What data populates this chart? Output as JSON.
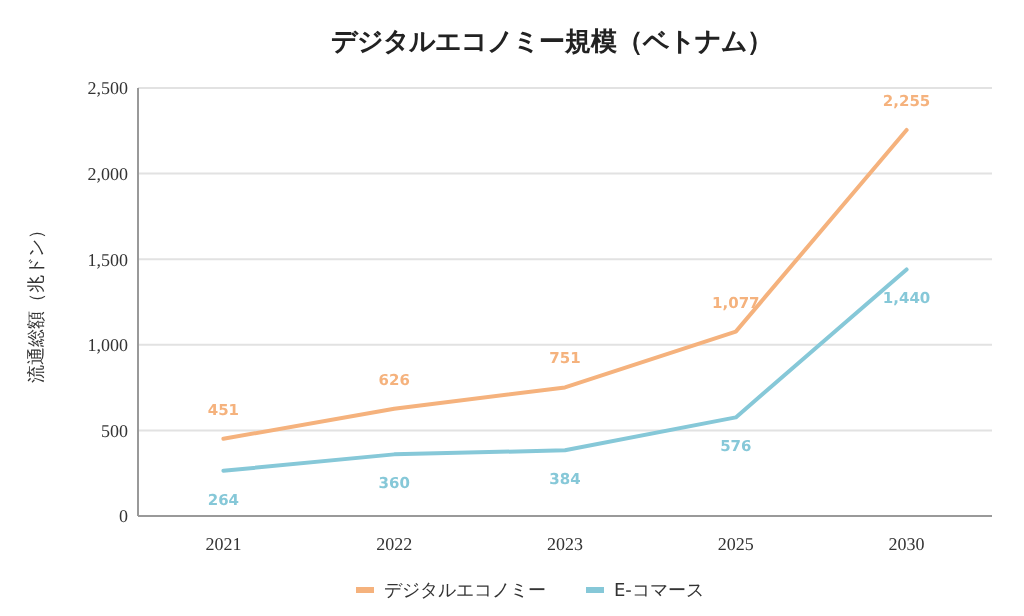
{
  "chart_data": {
    "type": "line",
    "title": "デジタルエコノミー規模（ベトナム）",
    "ylabel": "流通総額（兆ドン）",
    "categories": [
      "2021",
      "2022",
      "2023",
      "2025",
      "2030"
    ],
    "series": [
      {
        "name": "デジタルエコノミー",
        "color": "#f5b27d",
        "values": [
          451,
          626,
          751,
          1077,
          2255
        ],
        "value_labels": [
          "451",
          "626",
          "751",
          "1,077",
          "2,255"
        ]
      },
      {
        "name": "E-コマース",
        "color": "#86c8d8",
        "values": [
          264,
          360,
          384,
          576,
          1440
        ],
        "value_labels": [
          "264",
          "360",
          "384",
          "576",
          "1,440"
        ]
      }
    ],
    "ylim": [
      0,
      2500
    ],
    "yticks": [
      0,
      {
        "value": 500,
        "label": "500"
      },
      {
        "value": 1000,
        "label": "1,000"
      },
      {
        "value": 1500,
        "label": "1,500"
      },
      {
        "value": 2000,
        "label": "2,000"
      },
      {
        "value": 2500,
        "label": "2,500"
      }
    ],
    "grid": "y",
    "legend": "bottom",
    "marker": "none",
    "line_style": "solid"
  }
}
